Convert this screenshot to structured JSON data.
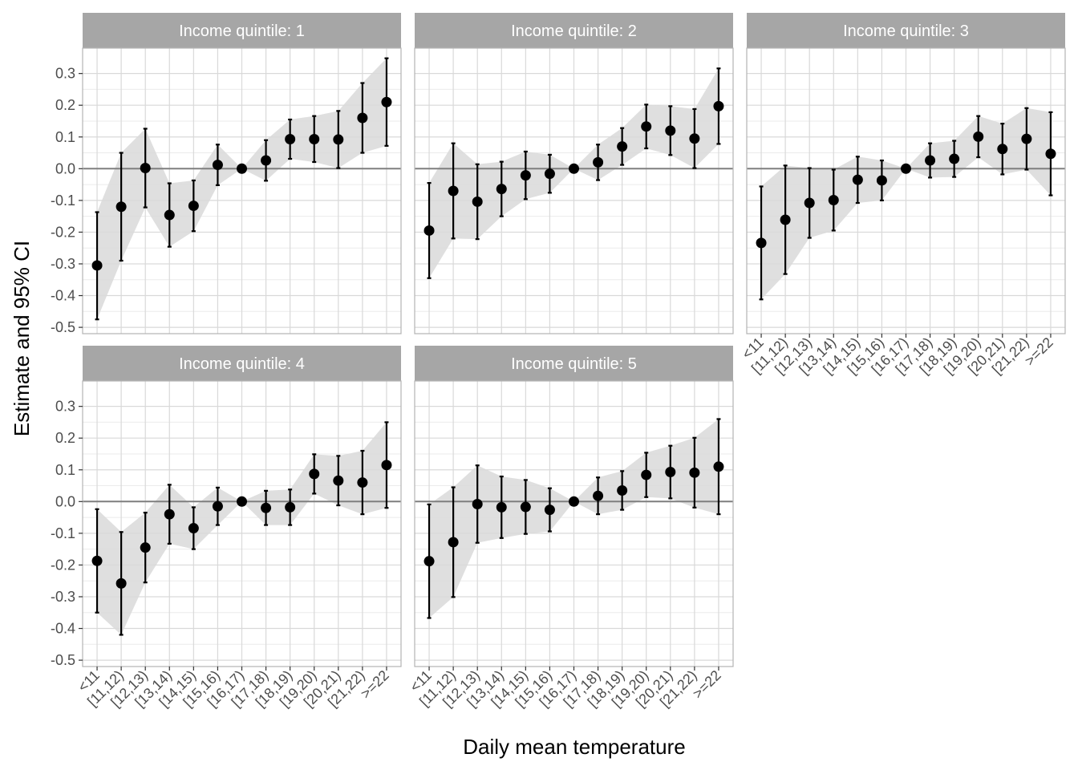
{
  "chart_data": {
    "type": "scatter",
    "xlabel": "Daily mean temperature",
    "ylabel": "Estimate and 95% CI",
    "ylim": [
      -0.52,
      0.38
    ],
    "yticks": [
      0.3,
      0.2,
      0.1,
      0.0,
      -0.1,
      -0.2,
      -0.3,
      -0.4,
      -0.5
    ],
    "ytick_labels": [
      "0.3",
      "0.2",
      "0.1",
      "0.0",
      "-0.1",
      "-0.2",
      "-0.3",
      "-0.4",
      "-0.5"
    ],
    "categories": [
      "<11",
      "[11,12)",
      "[12,13)",
      "[13,14)",
      "[14,15)",
      "[15,16)",
      "[16,17)",
      "[17,18)",
      "[18,19)",
      "[19,20)",
      "[20,21)",
      "[21,22)",
      ">=22"
    ],
    "grid": true,
    "reference_line": 0.0,
    "panels": [
      {
        "title": "Income quintile: 1",
        "estimate": [
          -0.305,
          -0.12,
          0.002,
          -0.146,
          -0.117,
          0.012,
          0.0,
          0.026,
          0.093,
          0.093,
          0.092,
          0.16,
          0.21
        ],
        "lower": [
          -0.475,
          -0.29,
          -0.122,
          -0.246,
          -0.197,
          -0.052,
          0.0,
          -0.038,
          0.031,
          0.021,
          0.002,
          0.05,
          0.072
        ],
        "upper": [
          -0.137,
          0.05,
          0.126,
          -0.046,
          -0.037,
          0.076,
          0.0,
          0.09,
          0.155,
          0.166,
          0.182,
          0.27,
          0.348
        ]
      },
      {
        "title": "Income quintile: 2",
        "estimate": [
          -0.195,
          -0.07,
          -0.104,
          -0.064,
          -0.021,
          -0.016,
          0.0,
          0.02,
          0.07,
          0.133,
          0.12,
          0.095,
          0.197
        ],
        "lower": [
          -0.345,
          -0.22,
          -0.222,
          -0.15,
          -0.096,
          -0.076,
          0.0,
          -0.036,
          0.012,
          0.064,
          0.043,
          0.002,
          0.078
        ],
        "upper": [
          -0.045,
          0.08,
          0.014,
          0.022,
          0.054,
          0.044,
          0.0,
          0.076,
          0.128,
          0.202,
          0.197,
          0.188,
          0.316
        ]
      },
      {
        "title": "Income quintile: 3",
        "estimate": [
          -0.234,
          -0.161,
          -0.108,
          -0.099,
          -0.035,
          -0.037,
          0.0,
          0.026,
          0.031,
          0.101,
          0.062,
          0.094,
          0.047
        ],
        "lower": [
          -0.412,
          -0.332,
          -0.218,
          -0.195,
          -0.108,
          -0.1,
          0.0,
          -0.028,
          -0.026,
          0.036,
          -0.018,
          -0.003,
          -0.084
        ],
        "upper": [
          -0.056,
          0.01,
          0.002,
          -0.003,
          0.038,
          0.026,
          0.0,
          0.08,
          0.088,
          0.166,
          0.142,
          0.191,
          0.178
        ]
      },
      {
        "title": "Income quintile: 4",
        "estimate": [
          -0.187,
          -0.258,
          -0.145,
          -0.04,
          -0.084,
          -0.015,
          0.0,
          -0.02,
          -0.018,
          0.087,
          0.066,
          0.06,
          0.115
        ],
        "lower": [
          -0.35,
          -0.42,
          -0.255,
          -0.133,
          -0.15,
          -0.074,
          0.0,
          -0.074,
          -0.074,
          0.025,
          -0.012,
          -0.04,
          -0.02
        ],
        "upper": [
          -0.024,
          -0.096,
          -0.035,
          0.053,
          -0.018,
          0.044,
          0.0,
          0.034,
          0.038,
          0.149,
          0.144,
          0.16,
          0.25
        ]
      },
      {
        "title": "Income quintile: 5",
        "estimate": [
          -0.188,
          -0.128,
          -0.008,
          -0.018,
          -0.017,
          -0.026,
          0.0,
          0.018,
          0.035,
          0.084,
          0.093,
          0.091,
          0.11
        ],
        "lower": [
          -0.367,
          -0.301,
          -0.13,
          -0.115,
          -0.102,
          -0.094,
          0.0,
          -0.04,
          -0.026,
          0.014,
          0.01,
          -0.019,
          -0.04
        ],
        "upper": [
          -0.009,
          0.045,
          0.114,
          0.079,
          0.068,
          0.042,
          0.0,
          0.076,
          0.096,
          0.154,
          0.176,
          0.201,
          0.26
        ]
      }
    ],
    "colors": {
      "strip_bg": "#a6a6a6",
      "grid_major": "#d9d9d9",
      "grid_minor": "#ebebeb",
      "panel_border": "#b3b3b3",
      "ribbon": "#d9d9d9",
      "reference_line": "#7f7f7f",
      "point": "#000000"
    }
  }
}
